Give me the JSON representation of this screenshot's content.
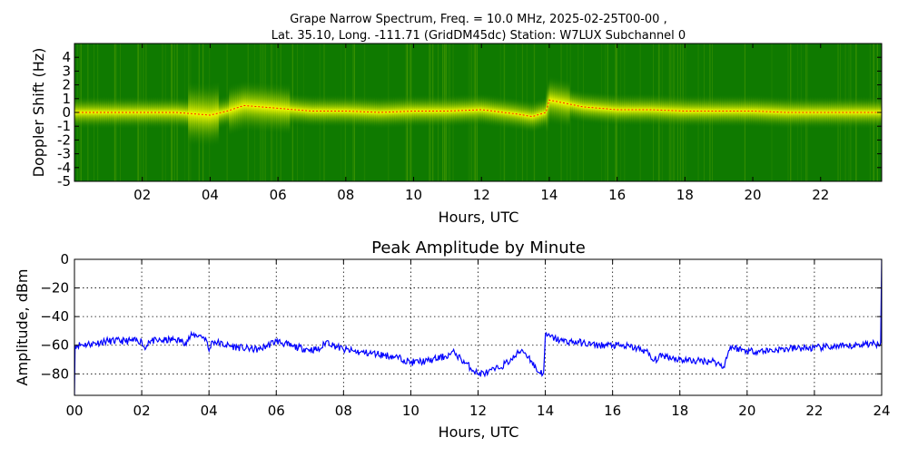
{
  "chart_data": [
    {
      "type": "heatmap",
      "title_lines": [
        "Grape Narrow Spectrum, Freq. = 10.0 MHz, 2025-02-25T00-00 ,",
        "Lat.  35.10, Long. -111.71 (GridDM45dc) Station: W7LUX Subchannel 0"
      ],
      "xlabel": "Hours, UTC",
      "ylabel": "Doppler Shift (Hz)",
      "xlim": [
        0,
        23.8
      ],
      "ylim": [
        -5,
        5
      ],
      "x_ticks": [
        2,
        4,
        6,
        8,
        10,
        12,
        14,
        16,
        18,
        20,
        22
      ],
      "x_tick_labels": [
        "02",
        "04",
        "06",
        "08",
        "10",
        "12",
        "14",
        "16",
        "18",
        "20",
        "22"
      ],
      "y_ticks": [
        4,
        3,
        2,
        1,
        0,
        -1,
        -2,
        -3,
        -4,
        -5
      ],
      "y_tick_labels": [
        "4",
        "3",
        "2",
        "1",
        "0",
        "-1",
        "-2",
        "-3",
        "-4",
        "-5"
      ],
      "colors": {
        "background": "#0f7a00",
        "mid": "#a8d000",
        "high": "#ffff00",
        "peak": "#ff2000"
      },
      "doppler_trace": {
        "hours": [
          0,
          1,
          2,
          3,
          3.5,
          4,
          4.5,
          5,
          6,
          7,
          8,
          9,
          10,
          11,
          12,
          13,
          13.5,
          13.9,
          14,
          15,
          16,
          17,
          18,
          19,
          20,
          21,
          22,
          23,
          23.8
        ],
        "hz": [
          0,
          0,
          0,
          0,
          -0.1,
          -0.2,
          0.1,
          0.5,
          0.3,
          0.1,
          0.1,
          0,
          0.1,
          0.1,
          0.2,
          -0.1,
          -0.3,
          0,
          0.9,
          0.4,
          0.2,
          0.2,
          0.1,
          0.1,
          0.1,
          0,
          0,
          0,
          0
        ]
      }
    },
    {
      "type": "line",
      "title": "Peak Amplitude by Minute",
      "xlabel": "Hours, UTC",
      "ylabel": "Amplitude, dBm",
      "xlim": [
        0,
        24
      ],
      "ylim": [
        -95,
        0
      ],
      "x_ticks": [
        0,
        2,
        4,
        6,
        8,
        10,
        12,
        14,
        16,
        18,
        20,
        22,
        24
      ],
      "x_tick_labels": [
        "00",
        "02",
        "04",
        "06",
        "08",
        "10",
        "12",
        "14",
        "16",
        "18",
        "20",
        "22",
        "24"
      ],
      "y_ticks": [
        0,
        -20,
        -40,
        -60,
        -80
      ],
      "y_tick_labels": [
        "0",
        "−20",
        "−40",
        "−60",
        "−80"
      ],
      "grid": true,
      "line_color": "#0000ff",
      "x": [
        0,
        0.02,
        0.5,
        1,
        1.5,
        2,
        2.1,
        2.2,
        2.5,
        3,
        3.3,
        3.5,
        3.7,
        3.9,
        4,
        4.1,
        4.5,
        5,
        5.5,
        6,
        6.5,
        7,
        7.3,
        7.5,
        7.7,
        8,
        8.5,
        9,
        9.5,
        9.8,
        10,
        10.5,
        11,
        11.3,
        11.5,
        12,
        12.3,
        12.6,
        13,
        13.3,
        13.5,
        13.8,
        13.95,
        14,
        14.5,
        15,
        15.5,
        16,
        16.5,
        17,
        17.2,
        17.5,
        18,
        18.5,
        19,
        19.3,
        19.5,
        20,
        20.5,
        21,
        21.5,
        22,
        22.5,
        23,
        23.5,
        23.9,
        23.97,
        24
      ],
      "y": [
        -95,
        -60,
        -59,
        -57,
        -57,
        -57,
        -63,
        -57,
        -57,
        -56,
        -58,
        -53,
        -53,
        -55,
        -64,
        -57,
        -60,
        -62,
        -63,
        -57,
        -61,
        -63,
        -63,
        -57,
        -60,
        -63,
        -65,
        -66,
        -68,
        -70,
        -72,
        -71,
        -68,
        -65,
        -70,
        -80,
        -79,
        -76,
        -70,
        -63,
        -68,
        -79,
        -79,
        -53,
        -57,
        -58,
        -60,
        -60,
        -61,
        -64,
        -71,
        -67,
        -70,
        -71,
        -71,
        -75,
        -61,
        -64,
        -64,
        -63,
        -62,
        -62,
        -61,
        -61,
        -59,
        -59,
        -58,
        0
      ]
    }
  ]
}
